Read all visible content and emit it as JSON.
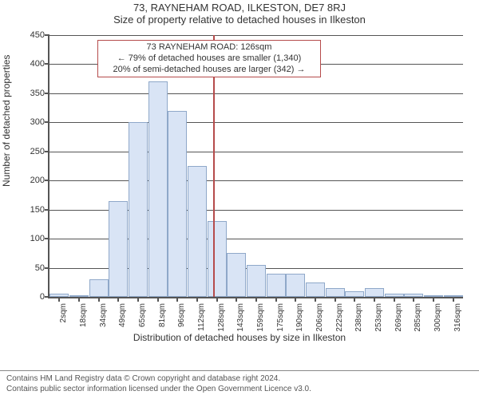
{
  "header": {
    "line1": "73, RAYNEHAM ROAD, ILKESTON, DE7 8RJ",
    "line2": "Size of property relative to detached houses in Ilkeston"
  },
  "chart": {
    "type": "histogram",
    "y_axis_label": "Number of detached properties",
    "x_axis_label": "Distribution of detached houses by size in Ilkeston",
    "ylim": [
      0,
      450
    ],
    "ytick_step": 50,
    "yticks": [
      0,
      50,
      100,
      150,
      200,
      250,
      300,
      350,
      400,
      450
    ],
    "x_categories": [
      "2sqm",
      "18sqm",
      "34sqm",
      "49sqm",
      "65sqm",
      "81sqm",
      "96sqm",
      "112sqm",
      "128sqm",
      "143sqm",
      "159sqm",
      "175sqm",
      "190sqm",
      "206sqm",
      "222sqm",
      "238sqm",
      "253sqm",
      "269sqm",
      "285sqm",
      "300sqm",
      "316sqm"
    ],
    "values": [
      5,
      0,
      30,
      165,
      300,
      370,
      320,
      225,
      130,
      75,
      55,
      40,
      40,
      25,
      15,
      10,
      15,
      5,
      5,
      2,
      2
    ],
    "bar_fill": "#d9e4f5",
    "bar_stroke": "#8fa8c9",
    "background_color": "#ffffff",
    "axis_color": "#555555",
    "label_fontsize": 12,
    "tick_fontsize": 10,
    "bar_width_rel": 0.98,
    "ref_line_x": "126sqm",
    "ref_line_value": 126,
    "ref_line_color": "#b54b4b",
    "ref_line_width": 2
  },
  "annotation": {
    "line1": "73 RAYNEHAM ROAD: 126sqm",
    "line2": "← 79% of detached houses are smaller (1,340)",
    "line3": "20% of semi-detached houses are larger (342) →",
    "border_color": "#b54b4b",
    "background": "#ffffff",
    "fontsize": 11
  },
  "footer": {
    "line1": "Contains HM Land Registry data © Crown copyright and database right 2024.",
    "line2": "Contains public sector information licensed under the Open Government Licence v3.0."
  }
}
